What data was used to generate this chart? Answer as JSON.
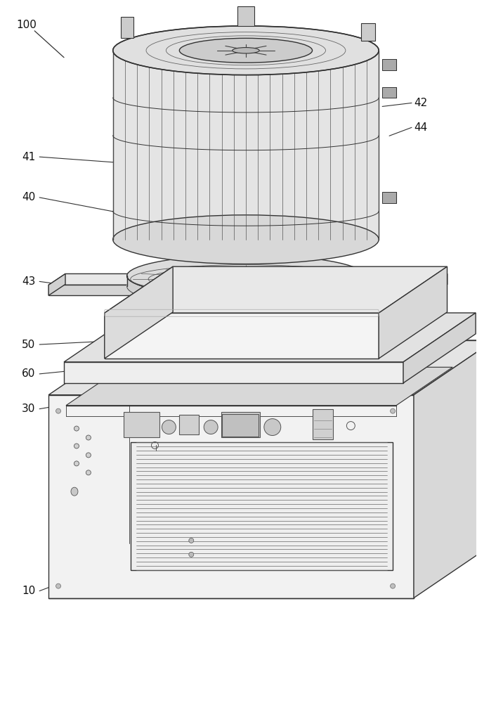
{
  "bg_color": "#ffffff",
  "line_color": "#333333",
  "label_color": "#111111",
  "fig_width": 6.79,
  "fig_height": 10.0,
  "dpi": 100,
  "lw_main": 1.0,
  "lw_thin": 0.55,
  "lw_thick": 1.4
}
